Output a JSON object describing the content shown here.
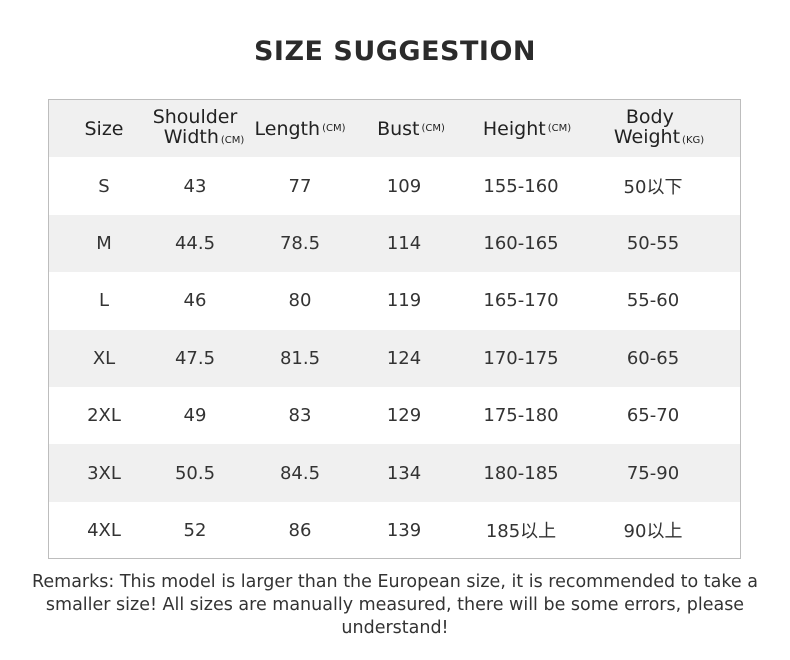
{
  "title": "SIZE SUGGESTION",
  "headers": [
    {
      "label": "Size",
      "unit": ""
    },
    {
      "label": "Shoulder Width",
      "line1": "Shoulder",
      "line2": "Width",
      "unit": "(CM)"
    },
    {
      "label": "Length",
      "unit": "(CM)"
    },
    {
      "label": "Bust",
      "unit": "(CM)"
    },
    {
      "label": "Height",
      "unit": "(CM)"
    },
    {
      "label": "Body Weight",
      "line1": "Body",
      "line2": "Weight",
      "unit": "(KG)"
    }
  ],
  "rows": [
    [
      "S",
      "43",
      "77",
      "109",
      "155-160",
      "50以下"
    ],
    [
      "M",
      "44.5",
      "78.5",
      "114",
      "160-165",
      "50-55"
    ],
    [
      "L",
      "46",
      "80",
      "119",
      "165-170",
      "55-60"
    ],
    [
      "XL",
      "47.5",
      "81.5",
      "124",
      "170-175",
      "60-65"
    ],
    [
      "2XL",
      "49",
      "83",
      "129",
      "175-180",
      "65-70"
    ],
    [
      "3XL",
      "50.5",
      "84.5",
      "134",
      "180-185",
      "75-90"
    ],
    [
      "4XL",
      "52",
      "86",
      "139",
      "185以上",
      "90以上"
    ]
  ],
  "remarks": "Remarks: This model is larger than the European size, it is recommended to take a smaller size! All sizes are manually measured, there will be some errors, please understand!",
  "colors": {
    "header_bg": "#f0f0f0",
    "stripe_bg": "#f0f0f0",
    "border": "#bdbdbd"
  }
}
